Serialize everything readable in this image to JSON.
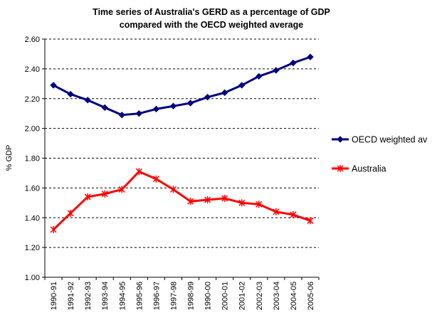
{
  "chart_data": {
    "type": "line",
    "title_line1": "Time series of Australia's GERD as a percentage of GDP",
    "title_line2": "compared with the OECD weighted average",
    "ylabel": "% GDP",
    "xlabel": "",
    "ylim": [
      1.0,
      2.6
    ],
    "ytick_step": 0.2,
    "y_tick_labels": [
      "1.00",
      "1.20",
      "1.40",
      "1.60",
      "1.80",
      "2.00",
      "2.20",
      "2.40",
      "2.60"
    ],
    "grid": "horizontal dashed",
    "legend_position": "right",
    "categories": [
      "1990-91",
      "1991-92",
      "1992-93",
      "1993-94",
      "1994-95",
      "1995-96",
      "1996-97",
      "1997-98",
      "1998-99",
      "1990-00",
      "2000-01",
      "2001-02",
      "2002-03",
      "2003-04",
      "2004-05",
      "2005-06"
    ],
    "series": [
      {
        "name": "OECD weighted av",
        "color": "#000080",
        "marker": "diamond",
        "values": [
          2.29,
          2.23,
          2.19,
          2.14,
          2.09,
          2.1,
          2.13,
          2.15,
          2.17,
          2.21,
          2.24,
          2.29,
          2.35,
          2.39,
          2.44,
          2.48
        ]
      },
      {
        "name": "Australia",
        "color": "#ff0000",
        "marker": "star",
        "values": [
          1.32,
          1.43,
          1.54,
          1.56,
          1.59,
          1.71,
          1.66,
          1.59,
          1.51,
          1.52,
          1.53,
          1.5,
          1.49,
          1.44,
          1.42,
          1.38
        ]
      }
    ]
  }
}
